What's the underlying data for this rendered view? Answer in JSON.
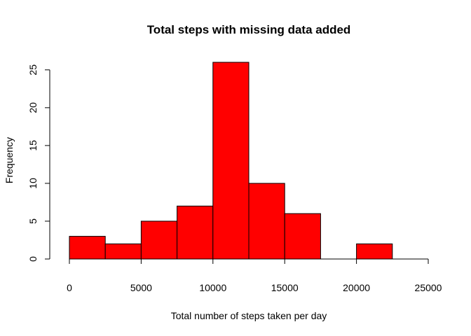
{
  "chart_data": {
    "type": "bar",
    "title": "Total steps with missing data added",
    "xlabel": "Total number of steps taken per day",
    "ylabel": "Frequency",
    "bar_color": "#ff0000",
    "bins": [
      {
        "x0": 0,
        "x1": 2500,
        "count": 3
      },
      {
        "x0": 2500,
        "x1": 5000,
        "count": 2
      },
      {
        "x0": 5000,
        "x1": 7500,
        "count": 5
      },
      {
        "x0": 7500,
        "x1": 10000,
        "count": 7
      },
      {
        "x0": 10000,
        "x1": 12500,
        "count": 26
      },
      {
        "x0": 12500,
        "x1": 15000,
        "count": 10
      },
      {
        "x0": 15000,
        "x1": 17500,
        "count": 6
      },
      {
        "x0": 17500,
        "x1": 20000,
        "count": 0
      },
      {
        "x0": 20000,
        "x1": 22500,
        "count": 2
      },
      {
        "x0": 22500,
        "x1": 25000,
        "count": 0
      }
    ],
    "xlim": [
      0,
      25000
    ],
    "ylim": [
      0,
      26
    ],
    "x_ticks": [
      0,
      5000,
      10000,
      15000,
      20000,
      25000
    ],
    "y_ticks": [
      0,
      5,
      10,
      15,
      20,
      25
    ],
    "grid": false,
    "legend": "none"
  }
}
